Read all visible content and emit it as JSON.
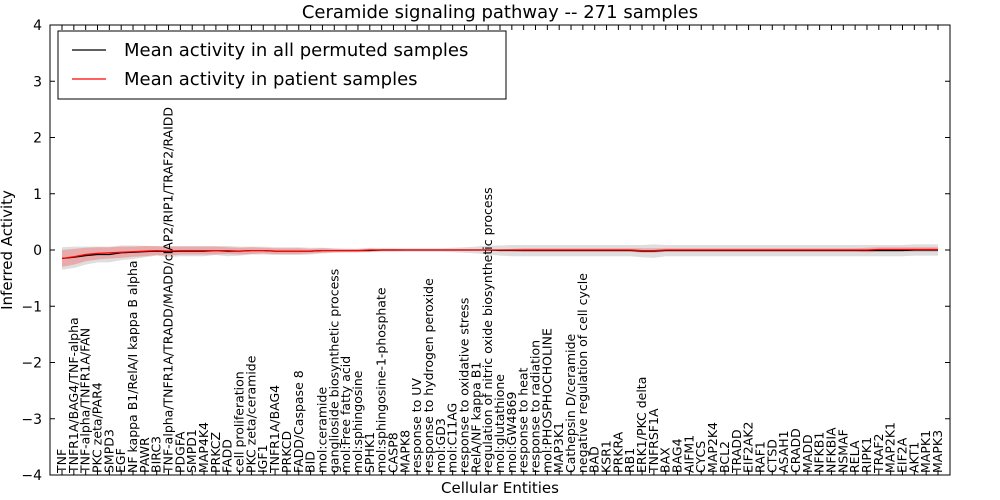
{
  "chart_data": {
    "type": "line",
    "title": "Ceramide signaling pathway -- 271 samples",
    "xlabel": "Cellular Entities",
    "ylabel": "Inferred Activity",
    "ylim": [
      -4,
      4
    ],
    "yticks": [
      -4,
      -3,
      -2,
      -1,
      0,
      1,
      2,
      3,
      4
    ],
    "grid": false,
    "legend_position": "top-left",
    "categories": [
      "TNF",
      "TNFR1A/BAG4/TNF-alpha",
      "TNF-alpha/TNFR1A/FAN",
      "PKC zeta/PAR4",
      "SMPD3",
      "EGF",
      "NF kappa B1/RelA/I kappa B alpha",
      "PAWR",
      "BIRC3",
      "TNF-alpha/TNFR1A/TRADD/MADD/cIAP2/RIP1/TRAF2/RAIDD",
      "PDGFA",
      "SMPD1",
      "MAP4K4",
      "PRKCZ",
      "FADD",
      "cell proliferation",
      "PKC zeta/ceramide",
      "IGF1",
      "TNFR1A/BAG4",
      "PRKCD",
      "FADD/Caspase 8",
      "BID",
      "mol:ceramide",
      "ganglioside biosynthetic process",
      "mol:Free fatty acid",
      "mol:sphingosine",
      "SPHK1",
      "mol:sphingosine-1-phosphate",
      "CASP8",
      "MAPK8",
      "response to UV",
      "response to hydrogen peroxide",
      "mol:GD3",
      "mol:C11AG",
      "response to oxidative stress",
      "RelA/NF kappa B1",
      "regulation of nitric oxide biosynthetic process",
      "mol:glutathione",
      "mol:GW4869",
      "response to heat",
      "response to radiation",
      "mol:PHOSPHOCHOLINE",
      "MAP3K1",
      "Cathepsin D/ceramide",
      "negative regulation of cell cycle",
      "BAD",
      "KSR1",
      "PRKRA",
      "RB1",
      "ERK1/PKC delta",
      "TNFRSF1A",
      "BAX",
      "BAG4",
      "AIFM1",
      "CYCS",
      "MAP2K4",
      "BCL2",
      "TRADD",
      "EIF2AK2",
      "RAF1",
      "CTSD",
      "ASAH1",
      "CRADD",
      "MADD",
      "NFKB1",
      "NFKBIA",
      "NSMAF",
      "RELA",
      "RIPK1",
      "TRAF2",
      "MAP2K1",
      "EIF2A",
      "AKT1",
      "MAPK1",
      "MAPK3"
    ],
    "series": [
      {
        "name": "Mean activity in all permuted samples",
        "color": "#000000",
        "values": [
          -0.15,
          -0.13,
          -0.1,
          -0.08,
          -0.08,
          -0.05,
          -0.04,
          -0.03,
          -0.02,
          -0.03,
          -0.02,
          -0.02,
          -0.02,
          -0.01,
          -0.02,
          -0.02,
          -0.01,
          -0.01,
          -0.02,
          -0.02,
          -0.02,
          -0.02,
          -0.01,
          -0.01,
          -0.01,
          -0.01,
          -0.01,
          0,
          0,
          0,
          0,
          0,
          0,
          0,
          0,
          0,
          0,
          -0.01,
          -0.01,
          -0.01,
          -0.01,
          -0.01,
          -0.01,
          -0.01,
          -0.01,
          -0.01,
          -0.01,
          -0.01,
          -0.01,
          -0.02,
          -0.02,
          -0.01,
          -0.01,
          -0.01,
          -0.01,
          -0.01,
          -0.01,
          -0.01,
          -0.01,
          -0.01,
          -0.01,
          -0.01,
          -0.01,
          -0.01,
          -0.01,
          -0.01,
          -0.01,
          -0.01,
          -0.01,
          -0.01,
          -0.01,
          -0.01,
          0,
          0,
          0
        ],
        "band": [
          0.2,
          0.19,
          0.16,
          0.14,
          0.14,
          0.13,
          0.12,
          0.1,
          0.08,
          0.1,
          0.09,
          0.09,
          0.09,
          0.08,
          0.09,
          0.08,
          0.07,
          0.07,
          0.07,
          0.07,
          0.07,
          0.06,
          0.05,
          0.04,
          0.03,
          0.03,
          0.03,
          0.03,
          0.03,
          0.03,
          0.03,
          0.03,
          0.03,
          0.04,
          0.05,
          0.06,
          0.08,
          0.09,
          0.1,
          0.1,
          0.1,
          0.1,
          0.1,
          0.1,
          0.1,
          0.1,
          0.1,
          0.1,
          0.1,
          0.11,
          0.12,
          0.1,
          0.1,
          0.1,
          0.1,
          0.1,
          0.1,
          0.1,
          0.1,
          0.1,
          0.1,
          0.1,
          0.1,
          0.1,
          0.1,
          0.1,
          0.1,
          0.1,
          0.1,
          0.1,
          0.1,
          0.1,
          0.1,
          0.1,
          0.1
        ]
      },
      {
        "name": "Mean activity in patient samples",
        "color": "#ff0000",
        "values": [
          -0.15,
          -0.12,
          -0.08,
          -0.06,
          -0.05,
          -0.04,
          -0.03,
          -0.02,
          -0.01,
          -0.02,
          -0.01,
          -0.01,
          -0.01,
          -0.01,
          -0.01,
          -0.02,
          -0.01,
          -0.01,
          -0.02,
          -0.02,
          -0.02,
          -0.02,
          -0.01,
          -0.01,
          -0.01,
          -0.01,
          0,
          0,
          0,
          0,
          0,
          0,
          0,
          0,
          0,
          0,
          0,
          0,
          0,
          0,
          0,
          0,
          0,
          0,
          0,
          0,
          0,
          0,
          0,
          -0.01,
          -0.01,
          0,
          0,
          0,
          0,
          0,
          0,
          0,
          0,
          0,
          0,
          0,
          0,
          0,
          0,
          0,
          0,
          0,
          0,
          0.01,
          0.01,
          0.01,
          0.01,
          0.01,
          0.01
        ],
        "band": [
          0.15,
          0.14,
          0.12,
          0.11,
          0.1,
          0.1,
          0.09,
          0.09,
          0.08,
          0.08,
          0.07,
          0.07,
          0.07,
          0.07,
          0.06,
          0.06,
          0.06,
          0.05,
          0.05,
          0.05,
          0.05,
          0.04,
          0.04,
          0.03,
          0.03,
          0.03,
          0.03,
          0.02,
          0.02,
          0.01,
          0.01,
          0.01,
          0.01,
          0.01,
          0.01,
          0.01,
          0.01,
          0.01,
          0.02,
          0.03,
          0.03,
          0.03,
          0.03,
          0.03,
          0.03,
          0.03,
          0.03,
          0.03,
          0.03,
          0.04,
          0.04,
          0.03,
          0.03,
          0.03,
          0.03,
          0.03,
          0.03,
          0.03,
          0.03,
          0.03,
          0.03,
          0.03,
          0.03,
          0.03,
          0.03,
          0.03,
          0.03,
          0.03,
          0.04,
          0.04,
          0.04,
          0.04,
          0.04,
          0.04,
          0.04
        ]
      }
    ],
    "colors": {
      "permuted_band": "#d3d3d3",
      "patient_band": "#f08080",
      "axis": "#000000"
    }
  }
}
